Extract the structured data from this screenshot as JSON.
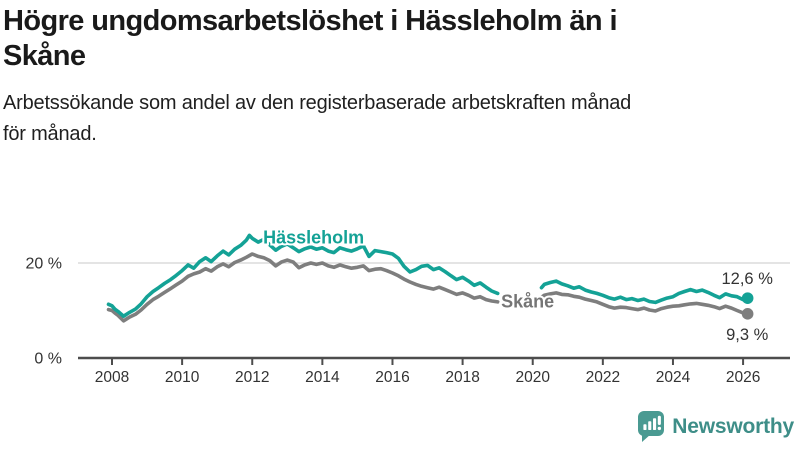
{
  "header": {
    "title_line1": "Högre ungdomsarbetslöshet i Hässleholm än i",
    "title_line2": "Skåne",
    "subtitle_line1": "Arbetssökande som andel av den registerbaserade arbetskraften månad",
    "subtitle_line2": "för månad."
  },
  "logo": {
    "brand": "Newsworthy",
    "icon": "bar-chart-speech-bubble",
    "color": "#4a9a92",
    "text_color": "#3e8e88"
  },
  "chart_data": {
    "type": "line",
    "title": "Högre ungdomsarbetslöshet i Hässleholm än i Skåne",
    "subtitle": "Arbetssökande som andel av den registerbaserade arbetskraften månad för månad.",
    "xlabel": "",
    "ylabel": "",
    "grid": "horizontal-only",
    "legend_position": "inline-labels",
    "xlim": [
      2007.0,
      2027.35
    ],
    "ylim": [
      0,
      30
    ],
    "x_ticks": [
      2008,
      2010,
      2012,
      2014,
      2016,
      2018,
      2020,
      2022,
      2024,
      2026
    ],
    "y_ticks": [
      {
        "value": 20,
        "label": "20 %"
      },
      {
        "value": 0,
        "label": "0 %"
      }
    ],
    "gap_note": "data break between early 2019 and spring 2020",
    "colors": {
      "hassleholm": "#14a296",
      "skane": "#7e7e7e",
      "axis": "#4d4d4d",
      "gridline": "#dbdbdb",
      "tick_text": "#333333"
    },
    "series": [
      {
        "name": "Hässleholm",
        "color": "#14a296",
        "end_label": "12,6 %",
        "end_value": 12.6,
        "segments": [
          [
            [
              2007.9,
              11.3
            ],
            [
              2008.0,
              11.0
            ],
            [
              2008.08,
              10.3
            ],
            [
              2008.17,
              9.8
            ],
            [
              2008.33,
              8.8
            ],
            [
              2008.5,
              9.6
            ],
            [
              2008.67,
              10.3
            ],
            [
              2008.83,
              11.4
            ],
            [
              2009.0,
              12.9
            ],
            [
              2009.17,
              14.0
            ],
            [
              2009.33,
              14.8
            ],
            [
              2009.5,
              15.7
            ],
            [
              2009.67,
              16.5
            ],
            [
              2009.83,
              17.4
            ],
            [
              2010.0,
              18.4
            ],
            [
              2010.17,
              19.6
            ],
            [
              2010.33,
              18.9
            ],
            [
              2010.5,
              20.3
            ],
            [
              2010.67,
              21.1
            ],
            [
              2010.83,
              20.3
            ],
            [
              2011.0,
              21.5
            ],
            [
              2011.17,
              22.5
            ],
            [
              2011.33,
              21.7
            ],
            [
              2011.5,
              22.9
            ],
            [
              2011.67,
              23.7
            ],
            [
              2011.83,
              24.8
            ],
            [
              2011.92,
              25.8
            ],
            [
              2012.0,
              25.2
            ],
            [
              2012.17,
              24.4
            ],
            [
              2012.33,
              25.0
            ],
            [
              2012.5,
              23.8
            ],
            [
              2012.67,
              22.7
            ],
            [
              2012.83,
              23.5
            ],
            [
              2013.0,
              24.0
            ],
            [
              2013.17,
              23.2
            ],
            [
              2013.33,
              22.4
            ],
            [
              2013.5,
              23.0
            ],
            [
              2013.67,
              23.4
            ],
            [
              2013.83,
              22.9
            ],
            [
              2014.0,
              23.2
            ],
            [
              2014.17,
              22.5
            ],
            [
              2014.33,
              22.2
            ],
            [
              2014.5,
              23.2
            ],
            [
              2014.67,
              22.8
            ],
            [
              2014.83,
              22.5
            ],
            [
              2015.0,
              23.0
            ],
            [
              2015.17,
              23.6
            ],
            [
              2015.33,
              21.4
            ],
            [
              2015.5,
              22.6
            ],
            [
              2015.67,
              22.4
            ],
            [
              2015.83,
              22.2
            ],
            [
              2016.0,
              21.9
            ],
            [
              2016.17,
              21.0
            ],
            [
              2016.33,
              19.3
            ],
            [
              2016.5,
              18.1
            ],
            [
              2016.67,
              18.6
            ],
            [
              2016.83,
              19.3
            ],
            [
              2017.0,
              19.5
            ],
            [
              2017.17,
              18.6
            ],
            [
              2017.33,
              19.0
            ],
            [
              2017.5,
              18.2
            ],
            [
              2017.67,
              17.3
            ],
            [
              2017.83,
              16.5
            ],
            [
              2018.0,
              17.0
            ],
            [
              2018.17,
              16.2
            ],
            [
              2018.33,
              15.3
            ],
            [
              2018.5,
              15.8
            ],
            [
              2018.67,
              14.9
            ],
            [
              2018.83,
              14.1
            ],
            [
              2019.0,
              13.6
            ]
          ],
          [
            [
              2020.25,
              14.8
            ],
            [
              2020.33,
              15.5
            ],
            [
              2020.5,
              15.9
            ],
            [
              2020.67,
              16.2
            ],
            [
              2020.83,
              15.6
            ],
            [
              2021.0,
              15.2
            ],
            [
              2021.17,
              14.7
            ],
            [
              2021.33,
              15.0
            ],
            [
              2021.5,
              14.3
            ],
            [
              2021.67,
              13.9
            ],
            [
              2021.83,
              13.6
            ],
            [
              2022.0,
              13.2
            ],
            [
              2022.17,
              12.7
            ],
            [
              2022.33,
              12.4
            ],
            [
              2022.5,
              12.8
            ],
            [
              2022.67,
              12.3
            ],
            [
              2022.83,
              12.5
            ],
            [
              2023.0,
              12.1
            ],
            [
              2023.17,
              12.4
            ],
            [
              2023.33,
              11.9
            ],
            [
              2023.5,
              11.7
            ],
            [
              2023.67,
              12.2
            ],
            [
              2023.83,
              12.6
            ],
            [
              2024.0,
              12.9
            ],
            [
              2024.17,
              13.6
            ],
            [
              2024.33,
              14.0
            ],
            [
              2024.5,
              14.4
            ],
            [
              2024.67,
              14.0
            ],
            [
              2024.83,
              14.3
            ],
            [
              2025.0,
              13.8
            ],
            [
              2025.17,
              13.2
            ],
            [
              2025.33,
              12.7
            ],
            [
              2025.5,
              13.5
            ],
            [
              2025.67,
              13.1
            ],
            [
              2025.83,
              12.9
            ],
            [
              2026.0,
              12.3
            ],
            [
              2026.13,
              12.6
            ]
          ]
        ]
      },
      {
        "name": "Skåne",
        "color": "#7e7e7e",
        "end_label": "9,3 %",
        "end_value": 9.3,
        "segments": [
          [
            [
              2007.9,
              10.2
            ],
            [
              2008.0,
              10.0
            ],
            [
              2008.08,
              9.5
            ],
            [
              2008.17,
              9.0
            ],
            [
              2008.33,
              7.8
            ],
            [
              2008.5,
              8.6
            ],
            [
              2008.67,
              9.2
            ],
            [
              2008.83,
              10.1
            ],
            [
              2009.0,
              11.3
            ],
            [
              2009.17,
              12.3
            ],
            [
              2009.33,
              13.0
            ],
            [
              2009.5,
              13.8
            ],
            [
              2009.67,
              14.6
            ],
            [
              2009.83,
              15.4
            ],
            [
              2010.0,
              16.2
            ],
            [
              2010.17,
              17.2
            ],
            [
              2010.33,
              17.7
            ],
            [
              2010.5,
              18.1
            ],
            [
              2010.67,
              18.8
            ],
            [
              2010.83,
              18.3
            ],
            [
              2011.0,
              19.2
            ],
            [
              2011.17,
              19.8
            ],
            [
              2011.33,
              19.2
            ],
            [
              2011.5,
              20.1
            ],
            [
              2011.67,
              20.6
            ],
            [
              2011.83,
              21.2
            ],
            [
              2012.0,
              21.9
            ],
            [
              2012.17,
              21.4
            ],
            [
              2012.33,
              21.1
            ],
            [
              2012.5,
              20.5
            ],
            [
              2012.67,
              19.4
            ],
            [
              2012.83,
              20.2
            ],
            [
              2013.0,
              20.6
            ],
            [
              2013.17,
              20.2
            ],
            [
              2013.33,
              19.0
            ],
            [
              2013.5,
              19.6
            ],
            [
              2013.67,
              20.0
            ],
            [
              2013.83,
              19.7
            ],
            [
              2014.0,
              20.0
            ],
            [
              2014.17,
              19.4
            ],
            [
              2014.33,
              19.1
            ],
            [
              2014.5,
              19.6
            ],
            [
              2014.67,
              19.2
            ],
            [
              2014.83,
              18.9
            ],
            [
              2015.0,
              19.1
            ],
            [
              2015.17,
              19.4
            ],
            [
              2015.33,
              18.4
            ],
            [
              2015.5,
              18.7
            ],
            [
              2015.67,
              18.8
            ],
            [
              2015.83,
              18.4
            ],
            [
              2016.0,
              17.9
            ],
            [
              2016.17,
              17.3
            ],
            [
              2016.33,
              16.6
            ],
            [
              2016.5,
              16.0
            ],
            [
              2016.67,
              15.5
            ],
            [
              2016.83,
              15.1
            ],
            [
              2017.0,
              14.8
            ],
            [
              2017.17,
              14.5
            ],
            [
              2017.33,
              14.9
            ],
            [
              2017.5,
              14.4
            ],
            [
              2017.67,
              13.9
            ],
            [
              2017.83,
              13.4
            ],
            [
              2018.0,
              13.7
            ],
            [
              2018.17,
              13.2
            ],
            [
              2018.33,
              12.6
            ],
            [
              2018.5,
              12.9
            ],
            [
              2018.67,
              12.3
            ],
            [
              2018.83,
              12.0
            ],
            [
              2019.0,
              11.8
            ]
          ],
          [
            [
              2020.25,
              12.8
            ],
            [
              2020.33,
              13.2
            ],
            [
              2020.5,
              13.5
            ],
            [
              2020.67,
              13.7
            ],
            [
              2020.83,
              13.4
            ],
            [
              2021.0,
              13.3
            ],
            [
              2021.17,
              13.0
            ],
            [
              2021.33,
              12.8
            ],
            [
              2021.5,
              12.4
            ],
            [
              2021.67,
              12.1
            ],
            [
              2021.83,
              11.8
            ],
            [
              2022.0,
              11.3
            ],
            [
              2022.17,
              10.8
            ],
            [
              2022.33,
              10.5
            ],
            [
              2022.5,
              10.7
            ],
            [
              2022.67,
              10.6
            ],
            [
              2022.83,
              10.4
            ],
            [
              2023.0,
              10.2
            ],
            [
              2023.17,
              10.5
            ],
            [
              2023.33,
              10.1
            ],
            [
              2023.5,
              9.9
            ],
            [
              2023.67,
              10.4
            ],
            [
              2023.83,
              10.7
            ],
            [
              2024.0,
              10.9
            ],
            [
              2024.17,
              11.0
            ],
            [
              2024.33,
              11.2
            ],
            [
              2024.5,
              11.4
            ],
            [
              2024.67,
              11.5
            ],
            [
              2024.83,
              11.3
            ],
            [
              2025.0,
              11.1
            ],
            [
              2025.17,
              10.8
            ],
            [
              2025.33,
              10.4
            ],
            [
              2025.5,
              10.9
            ],
            [
              2025.67,
              10.5
            ],
            [
              2025.83,
              10.0
            ],
            [
              2026.0,
              9.5
            ],
            [
              2026.13,
              9.3
            ]
          ]
        ]
      }
    ],
    "annotations": [
      {
        "text": "Hässleholm",
        "x": 2012.31,
        "y": 24.1,
        "anchor": "start",
        "color": "#14a296",
        "size": 18,
        "weight": "bold",
        "halo": true
      },
      {
        "text": "Skåne",
        "x": 2019.1,
        "y": 10.6,
        "anchor": "start",
        "color": "#757575",
        "size": 18,
        "weight": "bold",
        "halo": true
      },
      {
        "text": "12,6 %",
        "x": 2026.85,
        "y": 15.6,
        "anchor": "end",
        "color": "#333333",
        "size": 16.5,
        "weight": "normal",
        "halo": false
      },
      {
        "text": "9,3 %",
        "x": 2026.72,
        "y": 3.8,
        "anchor": "end",
        "color": "#333333",
        "size": 16.5,
        "weight": "normal",
        "halo": false
      }
    ]
  }
}
